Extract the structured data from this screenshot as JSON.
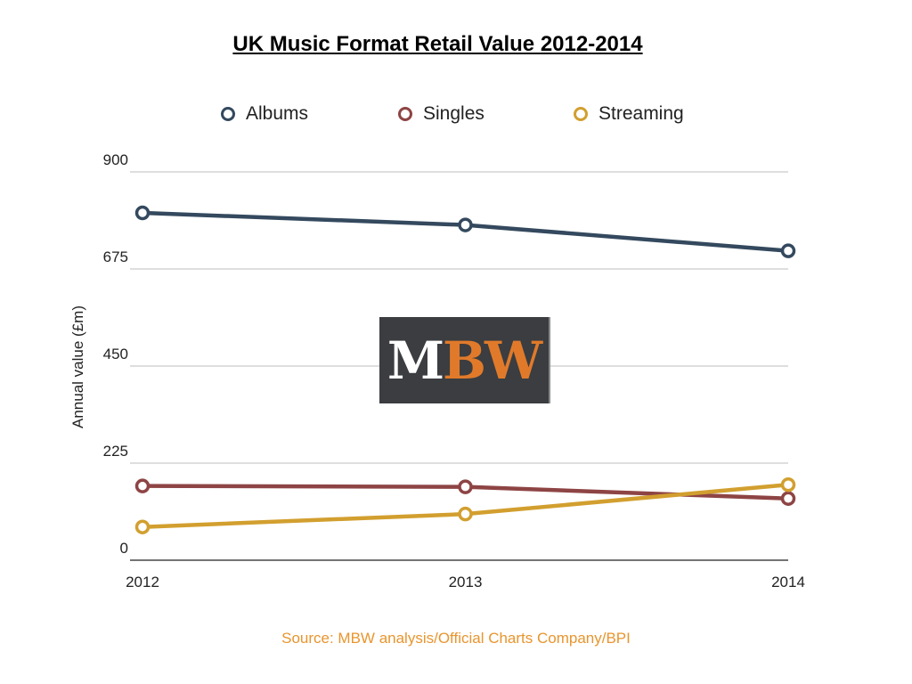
{
  "chart_data": {
    "type": "line",
    "title": "UK Music Format Retail Value 2012-2014",
    "ylabel": "Annual value (£m)",
    "xlabel": "",
    "x": [
      "2012",
      "2013",
      "2014"
    ],
    "ylim": [
      0,
      900
    ],
    "yticks": [
      "0",
      "225",
      "450",
      "675",
      "900"
    ],
    "grid": true,
    "legend_position": "top",
    "series": [
      {
        "name": "Albums",
        "values": [
          805,
          777,
          717
        ],
        "color": "#34495e"
      },
      {
        "name": "Singles",
        "values": [
          172,
          170,
          143
        ],
        "color": "#8e4444"
      },
      {
        "name": "Streaming",
        "values": [
          77,
          107,
          175
        ],
        "color": "#d29f2f"
      }
    ],
    "source": "Source: MBW analysis/Official Charts Company/BPI"
  },
  "logo": {
    "left_text": "M",
    "right_text": "BW"
  }
}
